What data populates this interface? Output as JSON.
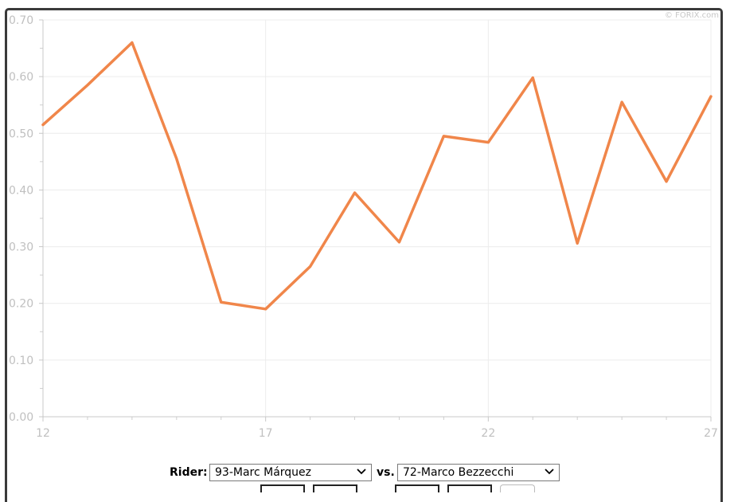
{
  "watermark": "© FORIX.com",
  "chart_data": {
    "type": "line",
    "title": "",
    "xlabel": "",
    "ylabel": "",
    "x": [
      12,
      13,
      14,
      15,
      16,
      17,
      18,
      19,
      20,
      21,
      22,
      23,
      24,
      25,
      26,
      27
    ],
    "series": [
      {
        "values": [
          0.515,
          0.585,
          0.66,
          0.455,
          0.202,
          0.19,
          0.265,
          0.395,
          0.308,
          0.495,
          0.484,
          0.598,
          0.306,
          0.555,
          0.415,
          0.565
        ],
        "color": "#f0864a"
      }
    ],
    "xlim": [
      12,
      27
    ],
    "ylim": [
      0,
      0.7
    ],
    "x_ticks": [
      "12",
      "17",
      "22",
      "27"
    ],
    "y_ticks": [
      "0.00",
      "0.10",
      "0.20",
      "0.30",
      "0.40",
      "0.50",
      "0.60",
      "0.70"
    ],
    "grid": true,
    "legend": "none"
  },
  "controls": {
    "rider_label": "Rider:",
    "rider_value": "93-Marc Márquez",
    "vs_label": "vs.",
    "opponent_value": "72-Marco Bezzecchi"
  }
}
